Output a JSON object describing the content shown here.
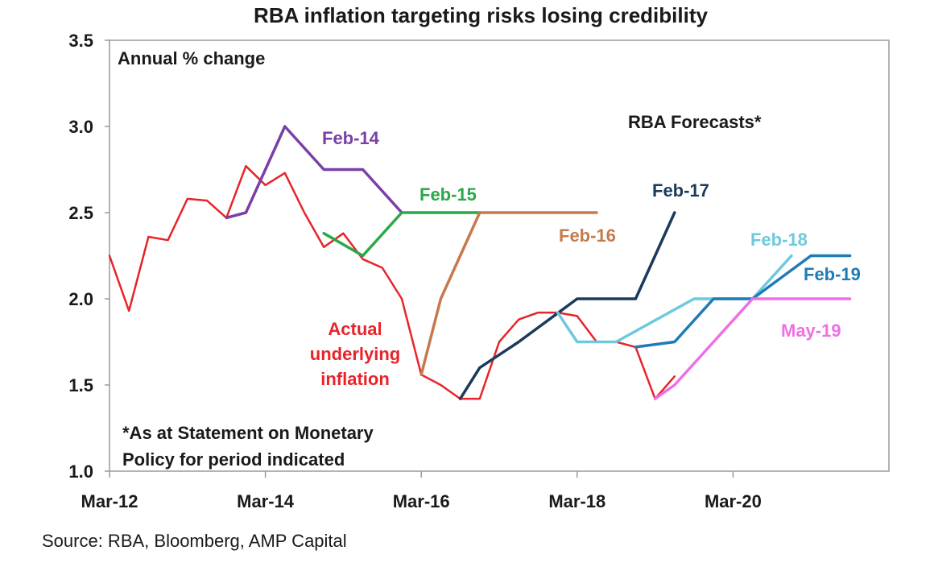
{
  "chart_data": {
    "type": "line",
    "title": "RBA inflation targeting risks losing credibility",
    "ylabel": "Annual % change",
    "ylim": [
      1.0,
      3.5
    ],
    "yticks": [
      "1.0",
      "1.5",
      "2.0",
      "2.5",
      "3.0",
      "3.5"
    ],
    "xlim": [
      "2012-03",
      "2022-03"
    ],
    "xticks": [
      {
        "label": "Mar-12",
        "date": "2012-03"
      },
      {
        "label": "Mar-14",
        "date": "2014-03"
      },
      {
        "label": "Mar-16",
        "date": "2016-03"
      },
      {
        "label": "Mar-18",
        "date": "2018-03"
      },
      {
        "label": "Mar-20",
        "date": "2020-03"
      }
    ],
    "grid": false,
    "forecast_heading": "RBA Forecasts*",
    "footnote": [
      "*As at Statement on Monetary",
      "Policy for period indicated"
    ],
    "series": [
      {
        "name": "Actual underlying inflation",
        "label_lines": [
          "Actual",
          "underlying",
          "inflation"
        ],
        "color": "#e8232a",
        "points": [
          [
            "2012-03",
            2.25
          ],
          [
            "2012-06",
            1.93
          ],
          [
            "2012-09",
            2.36
          ],
          [
            "2012-12",
            2.34
          ],
          [
            "2013-03",
            2.58
          ],
          [
            "2013-06",
            2.57
          ],
          [
            "2013-09",
            2.47
          ],
          [
            "2013-12",
            2.77
          ],
          [
            "2014-03",
            2.66
          ],
          [
            "2014-06",
            2.73
          ],
          [
            "2014-09",
            2.5
          ],
          [
            "2014-12",
            2.3
          ],
          [
            "2015-03",
            2.38
          ],
          [
            "2015-06",
            2.23
          ],
          [
            "2015-09",
            2.18
          ],
          [
            "2015-12",
            2.0
          ],
          [
            "2016-03",
            1.56
          ],
          [
            "2016-06",
            1.5
          ],
          [
            "2016-09",
            1.42
          ],
          [
            "2016-12",
            1.42
          ],
          [
            "2017-03",
            1.75
          ],
          [
            "2017-06",
            1.88
          ],
          [
            "2017-09",
            1.92
          ],
          [
            "2017-12",
            1.92
          ],
          [
            "2018-03",
            1.9
          ],
          [
            "2018-06",
            1.75
          ],
          [
            "2018-09",
            1.75
          ],
          [
            "2018-12",
            1.72
          ],
          [
            "2019-03",
            1.42
          ],
          [
            "2019-06",
            1.55
          ]
        ]
      },
      {
        "name": "Feb-14",
        "color": "#7b3fa6",
        "points": [
          [
            "2013-09",
            2.47
          ],
          [
            "2013-12",
            2.5
          ],
          [
            "2014-06",
            3.0
          ],
          [
            "2014-12",
            2.75
          ],
          [
            "2015-06",
            2.75
          ],
          [
            "2015-12",
            2.5
          ]
        ]
      },
      {
        "name": "Feb-15",
        "color": "#2aa84a",
        "points": [
          [
            "2014-12",
            2.38
          ],
          [
            "2015-06",
            2.25
          ],
          [
            "2015-12",
            2.5
          ],
          [
            "2016-12",
            2.5
          ]
        ]
      },
      {
        "name": "Feb-16",
        "color": "#c57a4e",
        "points": [
          [
            "2016-03",
            1.56
          ],
          [
            "2016-06",
            2.0
          ],
          [
            "2016-12",
            2.5
          ],
          [
            "2018-06",
            2.5
          ]
        ]
      },
      {
        "name": "Feb-17",
        "color": "#1b3a5c",
        "points": [
          [
            "2016-09",
            1.42
          ],
          [
            "2016-12",
            1.6
          ],
          [
            "2017-06",
            1.75
          ],
          [
            "2018-03",
            2.0
          ],
          [
            "2018-12",
            2.0
          ],
          [
            "2019-06",
            2.5
          ]
        ]
      },
      {
        "name": "Feb-18",
        "color": "#6ec9dc",
        "points": [
          [
            "2017-12",
            1.92
          ],
          [
            "2018-03",
            1.75
          ],
          [
            "2018-09",
            1.75
          ],
          [
            "2019-09",
            2.0
          ],
          [
            "2020-06",
            2.0
          ],
          [
            "2020-12",
            2.25
          ]
        ]
      },
      {
        "name": "Feb-19",
        "color": "#1f7bb5",
        "points": [
          [
            "2018-12",
            1.72
          ],
          [
            "2019-06",
            1.75
          ],
          [
            "2019-12",
            2.0
          ],
          [
            "2020-06",
            2.0
          ],
          [
            "2021-03",
            2.25
          ],
          [
            "2021-09",
            2.25
          ]
        ]
      },
      {
        "name": "May-19",
        "color": "#ee6fe6",
        "points": [
          [
            "2019-03",
            1.42
          ],
          [
            "2019-06",
            1.5
          ],
          [
            "2020-06",
            2.0
          ],
          [
            "2021-09",
            2.0
          ]
        ]
      }
    ]
  },
  "source": "Source: RBA, Bloomberg, AMP Capital"
}
